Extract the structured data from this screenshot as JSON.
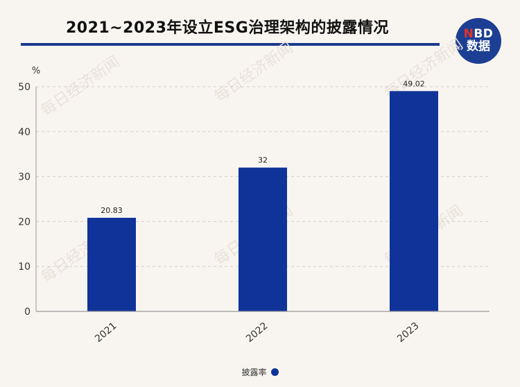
{
  "header": {
    "title": "2021~2023年设立ESG治理架构的披露情况",
    "logo_top": "NBD",
    "logo_top_accent": "N",
    "logo_top_rest": "BD",
    "logo_bottom": "数据"
  },
  "chart_data": {
    "type": "bar",
    "categories": [
      "2021",
      "2022",
      "2023"
    ],
    "series": [
      {
        "name": "披露率",
        "values": [
          20.83,
          32,
          49.02
        ],
        "labels": [
          "20.83",
          "32",
          "49.02"
        ]
      }
    ],
    "ylabel": "%",
    "ylim": [
      0,
      50
    ],
    "yticks": [
      0,
      10,
      20,
      30,
      40,
      50
    ],
    "grid": true,
    "legend": "bottom-center"
  },
  "watermark": "每日经济新闻",
  "colors": {
    "bar": "#0f3399",
    "accent": "#1a3a8c",
    "logo_red": "#e4332a"
  }
}
